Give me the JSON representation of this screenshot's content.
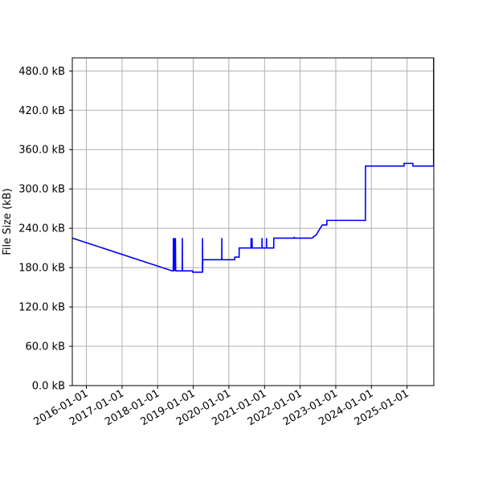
{
  "chart_data": {
    "type": "line",
    "title": "",
    "xlabel": "",
    "ylabel": "File Size (kB)",
    "grid": true,
    "xlim": [
      "2015-08-10",
      "2025-10-02"
    ],
    "ylim": [
      0,
      500
    ],
    "x_ticks": [
      {
        "date": "2016-01-01",
        "label": "2016-01-01"
      },
      {
        "date": "2017-01-01",
        "label": "2017-01-01"
      },
      {
        "date": "2018-01-01",
        "label": "2018-01-01"
      },
      {
        "date": "2019-01-01",
        "label": "2019-01-01"
      },
      {
        "date": "2020-01-01",
        "label": "2020-01-01"
      },
      {
        "date": "2021-01-01",
        "label": "2021-01-01"
      },
      {
        "date": "2022-01-01",
        "label": "2022-01-01"
      },
      {
        "date": "2023-01-01",
        "label": "2023-01-01"
      },
      {
        "date": "2024-01-01",
        "label": "2024-01-01"
      },
      {
        "date": "2025-01-01",
        "label": "2025-01-01"
      }
    ],
    "y_ticks": [
      {
        "value": 0,
        "label": "0.0 kB"
      },
      {
        "value": 60,
        "label": "60.0 kB"
      },
      {
        "value": 120,
        "label": "120.0 kB"
      },
      {
        "value": 180,
        "label": "180.0 kB"
      },
      {
        "value": 240,
        "label": "240.0 kB"
      },
      {
        "value": 300,
        "label": "300.0 kB"
      },
      {
        "value": 360,
        "label": "360.0 kB"
      },
      {
        "value": 420,
        "label": "420.0 kB"
      },
      {
        "value": 480,
        "label": "480.0 kB"
      }
    ],
    "series": [
      {
        "color": "#0000ff",
        "x": [
          "2015-08-10",
          "2018-06-01",
          "2018-06-10",
          "2018-06-11",
          "2018-06-12",
          "2018-06-13",
          "2018-06-14",
          "2018-06-15",
          "2018-06-20",
          "2018-06-21",
          "2018-06-22",
          "2018-06-23",
          "2018-06-27",
          "2018-06-28",
          "2018-07-01",
          "2018-07-02",
          "2018-07-05",
          "2018-07-06",
          "2018-09-10",
          "2018-09-11",
          "2018-09-12",
          "2018-09-13",
          "2018-12-25",
          "2018-12-26",
          "2019-04-05",
          "2019-04-06",
          "2019-04-07",
          "2019-04-08",
          "2019-04-09",
          "2019-04-10",
          "2019-10-20",
          "2019-10-21",
          "2019-10-22",
          "2019-10-23",
          "2020-03-01",
          "2020-03-02",
          "2020-04-15",
          "2020-04-16",
          "2020-08-15",
          "2020-08-16",
          "2020-08-17",
          "2020-08-25",
          "2020-08-26",
          "2020-08-27",
          "2020-12-05",
          "2020-12-06",
          "2020-12-07",
          "2020-12-08",
          "2021-01-20",
          "2021-01-21",
          "2021-01-22",
          "2021-01-23",
          "2021-04-05",
          "2021-04-06",
          "2021-04-08",
          "2021-10-01",
          "2021-11-01",
          "2021-11-02",
          "2021-11-03",
          "2021-11-04",
          "2022-05-01",
          "2022-06-15",
          "2022-08-15",
          "2022-10-01",
          "2022-10-02",
          "2023-11-01",
          "2023-11-02",
          "2024-12-01",
          "2024-12-02",
          "2025-03-01",
          "2025-03-02",
          "2025-09-30",
          "2025-10-01"
        ],
        "values": [
          225,
          175,
          175,
          225,
          175,
          225,
          175,
          225,
          175,
          225,
          175,
          225,
          175,
          225,
          175,
          225,
          175,
          175,
          175,
          225,
          175,
          175,
          175,
          173,
          173,
          225,
          173,
          192,
          192,
          192,
          192,
          225,
          192,
          192,
          192,
          196,
          196,
          210,
          210,
          225,
          210,
          210,
          225,
          210,
          210,
          225,
          210,
          210,
          210,
          225,
          210,
          210,
          210,
          225,
          225,
          225,
          225,
          227,
          225,
          225,
          225,
          230,
          245,
          245,
          252,
          252,
          335,
          335,
          339,
          339,
          335,
          335,
          500
        ]
      }
    ]
  }
}
